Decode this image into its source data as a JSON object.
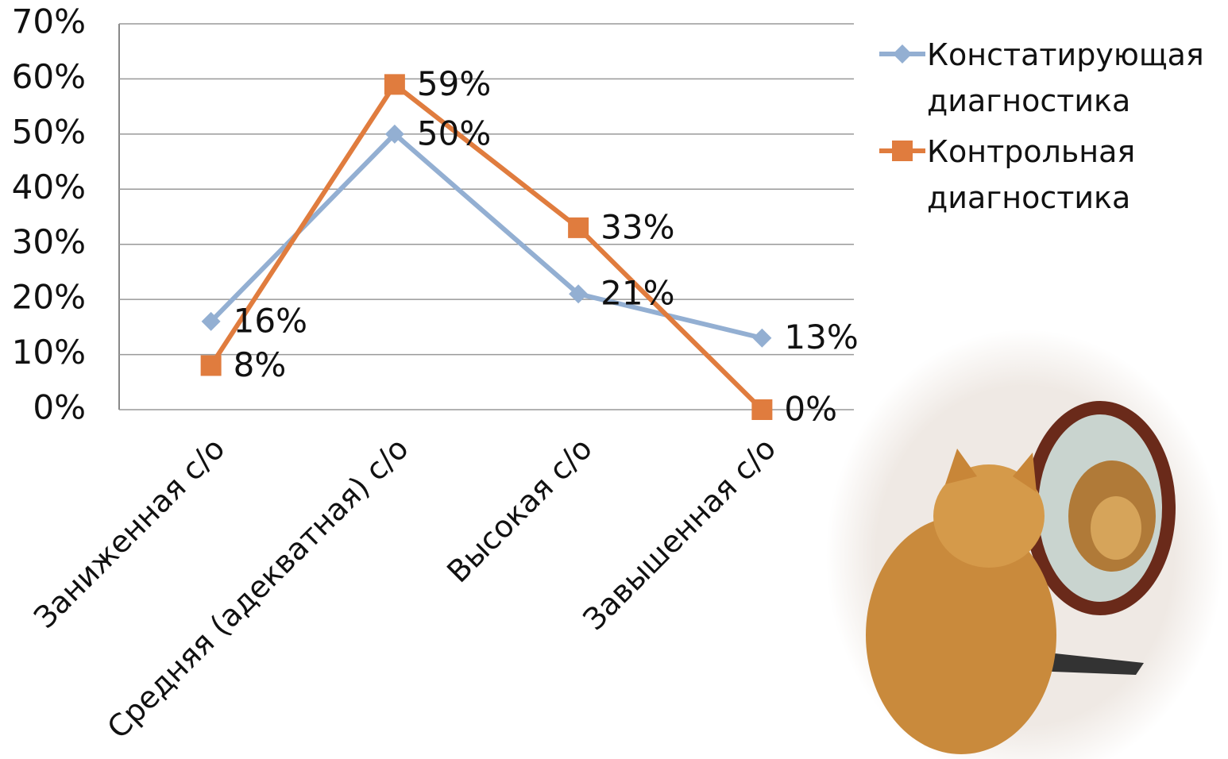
{
  "chart_data": {
    "type": "line",
    "categories": [
      "Заниженная с/о",
      "Средняя (адекватная) с/о",
      "Высокая с/о",
      "Завышенная с/о"
    ],
    "series": [
      {
        "name": "Констатирующая диагностика",
        "color": "#93afd2",
        "marker": "diamond",
        "values": [
          16,
          50,
          21,
          13
        ],
        "value_labels": [
          "16%",
          "50%",
          "21%",
          "13%"
        ]
      },
      {
        "name": "Контрольная диагностика",
        "color": "#e07c3e",
        "marker": "square",
        "values": [
          8,
          59,
          33,
          0
        ],
        "value_labels": [
          "8%",
          "59%",
          "33%",
          "0%"
        ]
      }
    ],
    "ylim": [
      0,
      70
    ],
    "yticks": [
      {
        "value": 0,
        "label": "0%"
      },
      {
        "value": 10,
        "label": "10%"
      },
      {
        "value": 20,
        "label": "20%"
      },
      {
        "value": 30,
        "label": "30%"
      },
      {
        "value": 40,
        "label": "40%"
      },
      {
        "value": 50,
        "label": "50%"
      },
      {
        "value": 60,
        "label": "60%"
      },
      {
        "value": 70,
        "label": "70%"
      }
    ],
    "grid": true,
    "legend": "right"
  }
}
